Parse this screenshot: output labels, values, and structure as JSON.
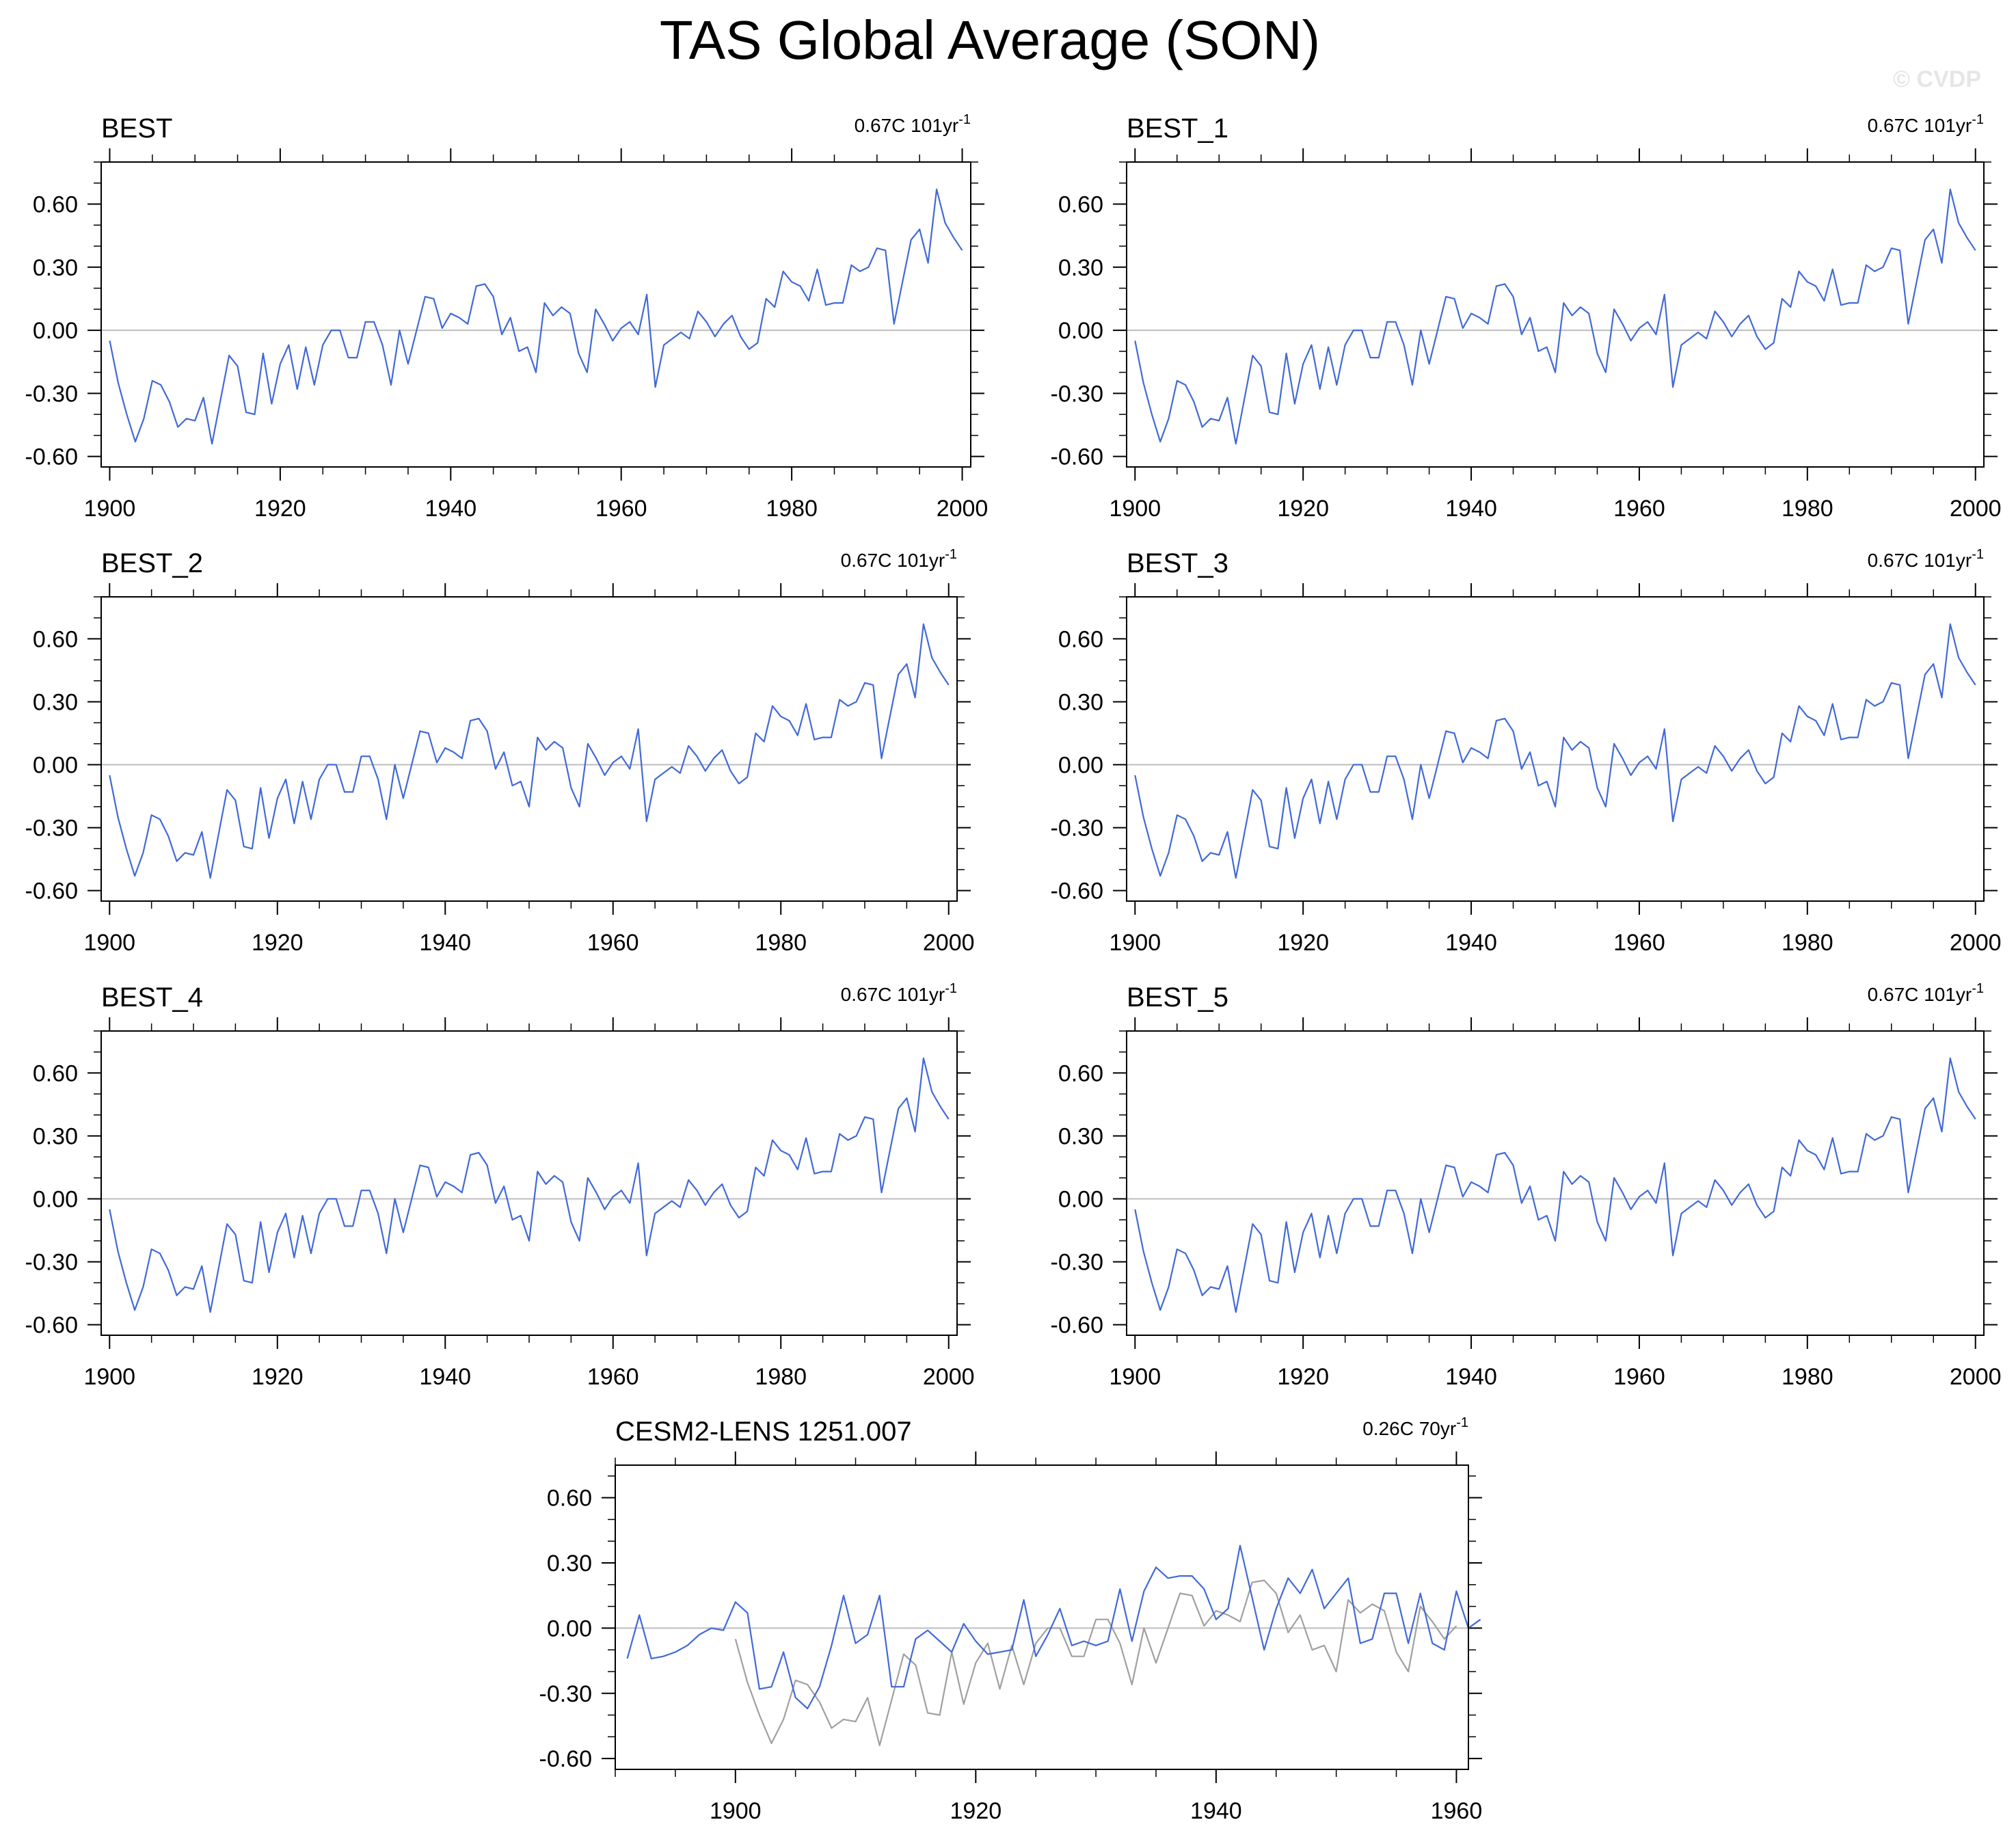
{
  "title": "TAS Global Average (SON)",
  "watermark": "© CVDP",
  "colors": {
    "series_main": "#4169d8",
    "series_reference": "#a0a0a0",
    "zero_line": "#bdbdbd",
    "frame": "#000000",
    "watermark": "#e6e6e6"
  },
  "chart_data": [
    {
      "type": "line",
      "title": "BEST",
      "trend_value": "0.67C 101yr",
      "trend_sup": "-1",
      "xlim": [
        1899,
        2001
      ],
      "ylim": [
        -0.65,
        0.8
      ],
      "yticks": [
        -0.6,
        -0.3,
        0.0,
        0.3,
        0.6
      ],
      "ytick_labels": [
        "-0.60",
        "-0.30",
        "0.00",
        "0.30",
        "0.60"
      ],
      "xticks": [
        1900,
        1920,
        1940,
        1960,
        1980,
        2000
      ],
      "xtick_labels": [
        "1900",
        "1920",
        "1940",
        "1960",
        "1980",
        "2000"
      ],
      "x_start": 1900,
      "series": [
        {
          "role": "main",
          "x_start": 1900,
          "values": [
            -0.05,
            -0.25,
            -0.4,
            -0.53,
            -0.42,
            -0.24,
            -0.26,
            -0.34,
            -0.46,
            -0.42,
            -0.43,
            -0.32,
            -0.54,
            -0.33,
            -0.12,
            -0.17,
            -0.39,
            -0.4,
            -0.11,
            -0.35,
            -0.16,
            -0.07,
            -0.28,
            -0.08,
            -0.26,
            -0.07,
            0.0,
            0.0,
            -0.13,
            -0.13,
            0.04,
            0.04,
            -0.07,
            -0.26,
            0.0,
            -0.16,
            0.0,
            0.16,
            0.15,
            0.01,
            0.08,
            0.06,
            0.03,
            0.21,
            0.22,
            0.16,
            -0.02,
            0.06,
            -0.1,
            -0.08,
            -0.2,
            0.13,
            0.07,
            0.11,
            0.08,
            -0.11,
            -0.2,
            0.1,
            0.03,
            -0.05,
            0.01,
            0.04,
            -0.02,
            0.17,
            -0.27,
            -0.07,
            -0.04,
            -0.01,
            -0.04,
            0.09,
            0.04,
            -0.03,
            0.03,
            0.07,
            -0.03,
            -0.09,
            -0.06,
            0.15,
            0.11,
            0.28,
            0.23,
            0.21,
            0.14,
            0.29,
            0.12,
            0.13,
            0.13,
            0.31,
            0.28,
            0.3,
            0.39,
            0.38,
            0.03,
            0.23,
            0.43,
            0.48,
            0.32,
            0.67,
            0.51,
            0.44,
            0.38
          ]
        }
      ]
    },
    {
      "type": "line",
      "title": "BEST_1",
      "trend_value": "0.67C 101yr",
      "trend_sup": "-1",
      "xlim": [
        1899,
        2001
      ],
      "ylim": [
        -0.65,
        0.8
      ],
      "yticks": [
        -0.6,
        -0.3,
        0.0,
        0.3,
        0.6
      ],
      "ytick_labels": [
        "-0.60",
        "-0.30",
        "0.00",
        "0.30",
        "0.60"
      ],
      "xticks": [
        1900,
        1920,
        1940,
        1960,
        1980,
        2000
      ],
      "xtick_labels": [
        "1900",
        "1920",
        "1940",
        "1960",
        "1980",
        "2000"
      ],
      "series": [
        {
          "role": "main",
          "x_start": 1900,
          "values": [
            -0.05,
            -0.25,
            -0.4,
            -0.53,
            -0.42,
            -0.24,
            -0.26,
            -0.34,
            -0.46,
            -0.42,
            -0.43,
            -0.32,
            -0.54,
            -0.33,
            -0.12,
            -0.17,
            -0.39,
            -0.4,
            -0.11,
            -0.35,
            -0.16,
            -0.07,
            -0.28,
            -0.08,
            -0.26,
            -0.07,
            0.0,
            0.0,
            -0.13,
            -0.13,
            0.04,
            0.04,
            -0.07,
            -0.26,
            0.0,
            -0.16,
            0.0,
            0.16,
            0.15,
            0.01,
            0.08,
            0.06,
            0.03,
            0.21,
            0.22,
            0.16,
            -0.02,
            0.06,
            -0.1,
            -0.08,
            -0.2,
            0.13,
            0.07,
            0.11,
            0.08,
            -0.11,
            -0.2,
            0.1,
            0.03,
            -0.05,
            0.01,
            0.04,
            -0.02,
            0.17,
            -0.27,
            -0.07,
            -0.04,
            -0.01,
            -0.04,
            0.09,
            0.04,
            -0.03,
            0.03,
            0.07,
            -0.03,
            -0.09,
            -0.06,
            0.15,
            0.11,
            0.28,
            0.23,
            0.21,
            0.14,
            0.29,
            0.12,
            0.13,
            0.13,
            0.31,
            0.28,
            0.3,
            0.39,
            0.38,
            0.03,
            0.23,
            0.43,
            0.48,
            0.32,
            0.67,
            0.51,
            0.44,
            0.38
          ]
        }
      ]
    },
    {
      "type": "line",
      "title": "BEST_2",
      "trend_value": "0.67C 101yr",
      "trend_sup": "-1",
      "xlim": [
        1899,
        2001
      ],
      "ylim": [
        -0.65,
        0.8
      ],
      "yticks": [
        -0.6,
        -0.3,
        0.0,
        0.3,
        0.6
      ],
      "ytick_labels": [
        "-0.60",
        "-0.30",
        "0.00",
        "0.30",
        "0.60"
      ],
      "xticks": [
        1900,
        1920,
        1940,
        1960,
        1980,
        2000
      ],
      "xtick_labels": [
        "1900",
        "1920",
        "1940",
        "1960",
        "1980",
        "2000"
      ],
      "series": [
        {
          "role": "main",
          "x_start": 1900,
          "values": [
            -0.05,
            -0.25,
            -0.4,
            -0.53,
            -0.42,
            -0.24,
            -0.26,
            -0.34,
            -0.46,
            -0.42,
            -0.43,
            -0.32,
            -0.54,
            -0.33,
            -0.12,
            -0.17,
            -0.39,
            -0.4,
            -0.11,
            -0.35,
            -0.16,
            -0.07,
            -0.28,
            -0.08,
            -0.26,
            -0.07,
            0.0,
            0.0,
            -0.13,
            -0.13,
            0.04,
            0.04,
            -0.07,
            -0.26,
            0.0,
            -0.16,
            0.0,
            0.16,
            0.15,
            0.01,
            0.08,
            0.06,
            0.03,
            0.21,
            0.22,
            0.16,
            -0.02,
            0.06,
            -0.1,
            -0.08,
            -0.2,
            0.13,
            0.07,
            0.11,
            0.08,
            -0.11,
            -0.2,
            0.1,
            0.03,
            -0.05,
            0.01,
            0.04,
            -0.02,
            0.17,
            -0.27,
            -0.07,
            -0.04,
            -0.01,
            -0.04,
            0.09,
            0.04,
            -0.03,
            0.03,
            0.07,
            -0.03,
            -0.09,
            -0.06,
            0.15,
            0.11,
            0.28,
            0.23,
            0.21,
            0.14,
            0.29,
            0.12,
            0.13,
            0.13,
            0.31,
            0.28,
            0.3,
            0.39,
            0.38,
            0.03,
            0.23,
            0.43,
            0.48,
            0.32,
            0.67,
            0.51,
            0.44,
            0.38
          ]
        }
      ]
    },
    {
      "type": "line",
      "title": "BEST_3",
      "trend_value": "0.67C 101yr",
      "trend_sup": "-1",
      "xlim": [
        1899,
        2001
      ],
      "ylim": [
        -0.65,
        0.8
      ],
      "yticks": [
        -0.6,
        -0.3,
        0.0,
        0.3,
        0.6
      ],
      "ytick_labels": [
        "-0.60",
        "-0.30",
        "0.00",
        "0.30",
        "0.60"
      ],
      "xticks": [
        1900,
        1920,
        1940,
        1960,
        1980,
        2000
      ],
      "xtick_labels": [
        "1900",
        "1920",
        "1940",
        "1960",
        "1980",
        "2000"
      ],
      "series": [
        {
          "role": "main",
          "x_start": 1900,
          "values": [
            -0.05,
            -0.25,
            -0.4,
            -0.53,
            -0.42,
            -0.24,
            -0.26,
            -0.34,
            -0.46,
            -0.42,
            -0.43,
            -0.32,
            -0.54,
            -0.33,
            -0.12,
            -0.17,
            -0.39,
            -0.4,
            -0.11,
            -0.35,
            -0.16,
            -0.07,
            -0.28,
            -0.08,
            -0.26,
            -0.07,
            0.0,
            0.0,
            -0.13,
            -0.13,
            0.04,
            0.04,
            -0.07,
            -0.26,
            0.0,
            -0.16,
            0.0,
            0.16,
            0.15,
            0.01,
            0.08,
            0.06,
            0.03,
            0.21,
            0.22,
            0.16,
            -0.02,
            0.06,
            -0.1,
            -0.08,
            -0.2,
            0.13,
            0.07,
            0.11,
            0.08,
            -0.11,
            -0.2,
            0.1,
            0.03,
            -0.05,
            0.01,
            0.04,
            -0.02,
            0.17,
            -0.27,
            -0.07,
            -0.04,
            -0.01,
            -0.04,
            0.09,
            0.04,
            -0.03,
            0.03,
            0.07,
            -0.03,
            -0.09,
            -0.06,
            0.15,
            0.11,
            0.28,
            0.23,
            0.21,
            0.14,
            0.29,
            0.12,
            0.13,
            0.13,
            0.31,
            0.28,
            0.3,
            0.39,
            0.38,
            0.03,
            0.23,
            0.43,
            0.48,
            0.32,
            0.67,
            0.51,
            0.44,
            0.38
          ]
        }
      ]
    },
    {
      "type": "line",
      "title": "BEST_4",
      "trend_value": "0.67C 101yr",
      "trend_sup": "-1",
      "xlim": [
        1899,
        2001
      ],
      "ylim": [
        -0.65,
        0.8
      ],
      "yticks": [
        -0.6,
        -0.3,
        0.0,
        0.3,
        0.6
      ],
      "ytick_labels": [
        "-0.60",
        "-0.30",
        "0.00",
        "0.30",
        "0.60"
      ],
      "xticks": [
        1900,
        1920,
        1940,
        1960,
        1980,
        2000
      ],
      "xtick_labels": [
        "1900",
        "1920",
        "1940",
        "1960",
        "1980",
        "2000"
      ],
      "series": [
        {
          "role": "main",
          "x_start": 1900,
          "values": [
            -0.05,
            -0.25,
            -0.4,
            -0.53,
            -0.42,
            -0.24,
            -0.26,
            -0.34,
            -0.46,
            -0.42,
            -0.43,
            -0.32,
            -0.54,
            -0.33,
            -0.12,
            -0.17,
            -0.39,
            -0.4,
            -0.11,
            -0.35,
            -0.16,
            -0.07,
            -0.28,
            -0.08,
            -0.26,
            -0.07,
            0.0,
            0.0,
            -0.13,
            -0.13,
            0.04,
            0.04,
            -0.07,
            -0.26,
            0.0,
            -0.16,
            0.0,
            0.16,
            0.15,
            0.01,
            0.08,
            0.06,
            0.03,
            0.21,
            0.22,
            0.16,
            -0.02,
            0.06,
            -0.1,
            -0.08,
            -0.2,
            0.13,
            0.07,
            0.11,
            0.08,
            -0.11,
            -0.2,
            0.1,
            0.03,
            -0.05,
            0.01,
            0.04,
            -0.02,
            0.17,
            -0.27,
            -0.07,
            -0.04,
            -0.01,
            -0.04,
            0.09,
            0.04,
            -0.03,
            0.03,
            0.07,
            -0.03,
            -0.09,
            -0.06,
            0.15,
            0.11,
            0.28,
            0.23,
            0.21,
            0.14,
            0.29,
            0.12,
            0.13,
            0.13,
            0.31,
            0.28,
            0.3,
            0.39,
            0.38,
            0.03,
            0.23,
            0.43,
            0.48,
            0.32,
            0.67,
            0.51,
            0.44,
            0.38
          ]
        }
      ]
    },
    {
      "type": "line",
      "title": "BEST_5",
      "trend_value": "0.67C 101yr",
      "trend_sup": "-1",
      "xlim": [
        1899,
        2001
      ],
      "ylim": [
        -0.65,
        0.8
      ],
      "yticks": [
        -0.6,
        -0.3,
        0.0,
        0.3,
        0.6
      ],
      "ytick_labels": [
        "-0.60",
        "-0.30",
        "0.00",
        "0.30",
        "0.60"
      ],
      "xticks": [
        1900,
        1920,
        1940,
        1960,
        1980,
        2000
      ],
      "xtick_labels": [
        "1900",
        "1920",
        "1940",
        "1960",
        "1980",
        "2000"
      ],
      "series": [
        {
          "role": "main",
          "x_start": 1900,
          "values": [
            -0.05,
            -0.25,
            -0.4,
            -0.53,
            -0.42,
            -0.24,
            -0.26,
            -0.34,
            -0.46,
            -0.42,
            -0.43,
            -0.32,
            -0.54,
            -0.33,
            -0.12,
            -0.17,
            -0.39,
            -0.4,
            -0.11,
            -0.35,
            -0.16,
            -0.07,
            -0.28,
            -0.08,
            -0.26,
            -0.07,
            0.0,
            0.0,
            -0.13,
            -0.13,
            0.04,
            0.04,
            -0.07,
            -0.26,
            0.0,
            -0.16,
            0.0,
            0.16,
            0.15,
            0.01,
            0.08,
            0.06,
            0.03,
            0.21,
            0.22,
            0.16,
            -0.02,
            0.06,
            -0.1,
            -0.08,
            -0.2,
            0.13,
            0.07,
            0.11,
            0.08,
            -0.11,
            -0.2,
            0.1,
            0.03,
            -0.05,
            0.01,
            0.04,
            -0.02,
            0.17,
            -0.27,
            -0.07,
            -0.04,
            -0.01,
            -0.04,
            0.09,
            0.04,
            -0.03,
            0.03,
            0.07,
            -0.03,
            -0.09,
            -0.06,
            0.15,
            0.11,
            0.28,
            0.23,
            0.21,
            0.14,
            0.29,
            0.12,
            0.13,
            0.13,
            0.31,
            0.28,
            0.3,
            0.39,
            0.38,
            0.03,
            0.23,
            0.43,
            0.48,
            0.32,
            0.67,
            0.51,
            0.44,
            0.38
          ]
        }
      ]
    },
    {
      "type": "line",
      "title": "CESM2-LENS 1251.007",
      "trend_value": "0.26C 70yr",
      "trend_sup": "-1",
      "xlim": [
        1890,
        1961
      ],
      "ylim": [
        -0.65,
        0.75
      ],
      "yticks": [
        -0.6,
        -0.3,
        0.0,
        0.3,
        0.6
      ],
      "ytick_labels": [
        "-0.60",
        "-0.30",
        "0.00",
        "0.30",
        "0.60"
      ],
      "xticks": [
        1900,
        1920,
        1940,
        1960
      ],
      "xtick_labels": [
        "1900",
        "1920",
        "1940",
        "1960"
      ],
      "series": [
        {
          "role": "main",
          "x_start": 1891,
          "values": [
            -0.14,
            0.06,
            -0.14,
            -0.13,
            -0.11,
            -0.08,
            -0.03,
            0.0,
            -0.01,
            0.12,
            0.07,
            -0.28,
            -0.27,
            -0.11,
            -0.32,
            -0.37,
            -0.27,
            -0.08,
            0.15,
            -0.07,
            -0.03,
            0.15,
            -0.27,
            -0.27,
            -0.05,
            -0.01,
            -0.06,
            -0.11,
            0.02,
            -0.06,
            -0.12,
            -0.11,
            -0.1,
            0.13,
            -0.13,
            -0.03,
            0.09,
            -0.08,
            -0.06,
            -0.08,
            -0.06,
            0.18,
            -0.06,
            0.17,
            0.28,
            0.23,
            0.24,
            0.24,
            0.18,
            0.04,
            0.09,
            0.38,
            0.14,
            -0.1,
            0.09,
            0.23,
            0.16,
            0.27,
            0.09,
            0.16,
            0.23,
            -0.07,
            -0.05,
            0.16,
            0.16,
            -0.07,
            0.16,
            -0.07,
            -0.1,
            0.17,
            0.0,
            0.04
          ]
        },
        {
          "role": "reference",
          "x_start": 1900,
          "values": [
            -0.05,
            -0.25,
            -0.4,
            -0.53,
            -0.42,
            -0.24,
            -0.26,
            -0.34,
            -0.46,
            -0.42,
            -0.43,
            -0.32,
            -0.54,
            -0.33,
            -0.12,
            -0.17,
            -0.39,
            -0.4,
            -0.11,
            -0.35,
            -0.16,
            -0.07,
            -0.28,
            -0.08,
            -0.26,
            -0.07,
            0.0,
            0.0,
            -0.13,
            -0.13,
            0.04,
            0.04,
            -0.07,
            -0.26,
            0.0,
            -0.16,
            0.0,
            0.16,
            0.15,
            0.01,
            0.08,
            0.06,
            0.03,
            0.21,
            0.22,
            0.16,
            -0.02,
            0.06,
            -0.1,
            -0.08,
            -0.2,
            0.13,
            0.07,
            0.11,
            0.08,
            -0.11,
            -0.2,
            0.1,
            0.03,
            -0.05,
            0.01
          ]
        }
      ]
    }
  ]
}
